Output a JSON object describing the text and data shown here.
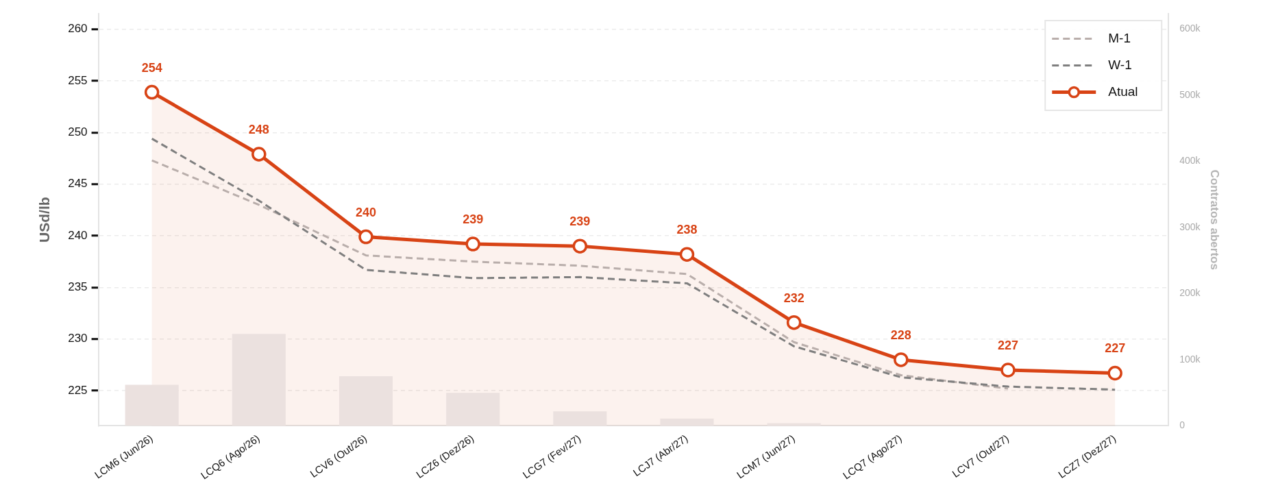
{
  "chart_data": {
    "type": "line",
    "ylabel": "USd/lb",
    "y2label": "Contratos abertos",
    "categories": [
      "LCM6 (Jun/26)",
      "LCQ6 (Ago/26)",
      "LCV6 (Out/26)",
      "LCZ6 (Dez/26)",
      "LCG7 (Fev/27)",
      "LCJ7 (Abr/27)",
      "LCM7 (Jun/27)",
      "LCQ7 (Ago/27)",
      "LCV7 (Out/27)",
      "LCZ7 (Dez/27)"
    ],
    "series": [
      {
        "type": "bar",
        "axis": "y2",
        "color": "#ebe1df",
        "values": [
          62000,
          139000,
          75000,
          50000,
          22000,
          11000,
          4000,
          0,
          0,
          0
        ]
      },
      {
        "name": "M-1",
        "color": "#b9aeab",
        "line_style": "dashed",
        "marker": "none",
        "values": [
          247.3,
          243.0,
          238.1,
          237.5,
          237.1,
          236.3,
          229.7,
          226.5,
          225.2,
          null
        ]
      },
      {
        "name": "W-1",
        "color": "#7f7f7f",
        "line_style": "dashed",
        "marker": "none",
        "values": [
          249.4,
          243.4,
          236.7,
          235.9,
          236.0,
          235.4,
          229.3,
          226.3,
          225.4,
          225.1
        ]
      },
      {
        "name": "Atual",
        "type": "area",
        "color": "#d84315",
        "line_style": "solid",
        "marker": "circle",
        "values": [
          253.9,
          247.9,
          239.9,
          239.2,
          239.0,
          238.2,
          231.6,
          228.0,
          227.0,
          226.7
        ],
        "value_labels": [
          "254",
          "248",
          "240",
          "239",
          "239",
          "238",
          "232",
          "228",
          "227",
          "227"
        ]
      }
    ],
    "ylim": [
      221.6,
      261.5
    ],
    "yticks": [
      225,
      230,
      235,
      240,
      245,
      250,
      255,
      260
    ],
    "y2lim": [
      0,
      623000
    ],
    "y2ticks": [
      0,
      {
        "value": 100000,
        "label": "100k"
      },
      {
        "value": 200000,
        "label": "200k"
      },
      {
        "value": 300000,
        "label": "300k"
      },
      {
        "value": 400000,
        "label": "400k"
      },
      {
        "value": 500000,
        "label": "500k"
      },
      {
        "value": 600000,
        "label": "600k"
      }
    ],
    "grid": "y",
    "legend": "top right"
  }
}
